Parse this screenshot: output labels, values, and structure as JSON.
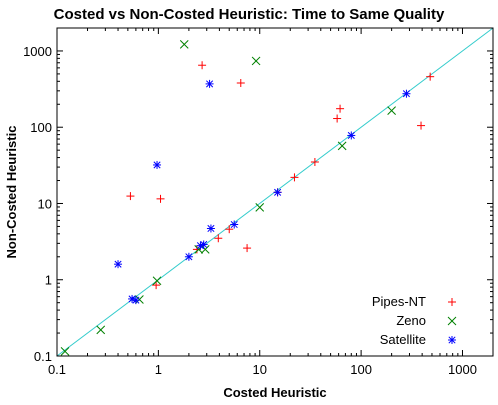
{
  "chart_data": {
    "type": "scatter",
    "title": "Costed vs Non-Costed Heuristic: Time to Same Quality",
    "xlabel": "Costed Heuristic",
    "ylabel": "Non-Costed Heuristic",
    "xscale": "log",
    "yscale": "log",
    "xlim": [
      0.1,
      2000
    ],
    "ylim": [
      0.1,
      2000
    ],
    "x_ticks": [
      0.1,
      1,
      10,
      100,
      1000
    ],
    "y_ticks": [
      0.1,
      1,
      10,
      100,
      1000
    ],
    "x_tick_labels": [
      "0.1",
      "1",
      "10",
      "100",
      "1000"
    ],
    "y_tick_labels": [
      "0.1",
      "1",
      "10",
      "100",
      "1000"
    ],
    "grid": false,
    "legend_position": "bottom-right",
    "reference_line": {
      "type": "y=x",
      "color": "#33cccc"
    },
    "series": [
      {
        "name": "Pipes-NT",
        "marker": "plus",
        "color": "#ff0000",
        "points": [
          [
            0.53,
            12.5
          ],
          [
            1.05,
            11.5
          ],
          [
            0.95,
            0.85
          ],
          [
            2.7,
            650
          ],
          [
            6.5,
            380
          ],
          [
            3.9,
            3.5
          ],
          [
            5.0,
            4.6
          ],
          [
            7.5,
            2.6
          ],
          [
            22,
            22
          ],
          [
            35,
            35
          ],
          [
            58,
            130
          ],
          [
            62,
            175
          ],
          [
            390,
            105
          ],
          [
            480,
            460
          ],
          [
            15,
            14
          ],
          [
            2.4,
            2.5
          ]
        ]
      },
      {
        "name": "Zeno",
        "marker": "x",
        "color": "#008000",
        "points": [
          [
            0.12,
            0.115
          ],
          [
            0.27,
            0.22
          ],
          [
            0.65,
            0.55
          ],
          [
            0.97,
            0.97
          ],
          [
            1.8,
            1220
          ],
          [
            9.2,
            740
          ],
          [
            2.5,
            2.5
          ],
          [
            2.9,
            2.5
          ],
          [
            10,
            8.9
          ],
          [
            65,
            57
          ],
          [
            200,
            165
          ]
        ]
      },
      {
        "name": "Satellite",
        "marker": "star",
        "color": "#0000ff",
        "points": [
          [
            0.4,
            1.6
          ],
          [
            0.55,
            0.56
          ],
          [
            0.6,
            0.54
          ],
          [
            0.97,
            32
          ],
          [
            2.0,
            2.0
          ],
          [
            2.6,
            2.8
          ],
          [
            2.8,
            2.9
          ],
          [
            3.3,
            4.7
          ],
          [
            3.2,
            370
          ],
          [
            5.6,
            5.3
          ],
          [
            15,
            14
          ],
          [
            80,
            78
          ],
          [
            280,
            275
          ]
        ]
      }
    ]
  }
}
